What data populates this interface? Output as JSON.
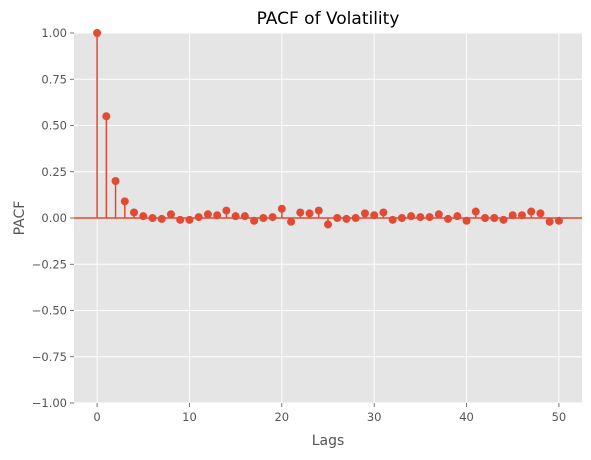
{
  "chart_data": {
    "type": "stem",
    "title": "PACF of Volatility",
    "xlabel": "Lags",
    "ylabel": "PACF",
    "xlim": [
      -2.5,
      52.5
    ],
    "ylim": [
      -1.0,
      1.0
    ],
    "x_ticks": [
      0,
      10,
      20,
      30,
      40,
      50
    ],
    "y_ticks": [
      -1.0,
      -0.75,
      -0.5,
      -0.25,
      0.0,
      0.25,
      0.5,
      0.75,
      1.0
    ],
    "x_tick_labels": [
      "0",
      "10",
      "20",
      "30",
      "40",
      "50"
    ],
    "y_tick_labels": [
      "−1.00",
      "−0.75",
      "−0.50",
      "−0.25",
      "0.00",
      "0.25",
      "0.50",
      "0.75",
      "1.00"
    ],
    "grid": true,
    "series": [
      {
        "x": [
          0,
          1,
          2,
          3,
          4,
          5,
          6,
          7,
          8,
          9,
          10,
          11,
          12,
          13,
          14,
          15,
          16,
          17,
          18,
          19,
          20,
          21,
          22,
          23,
          24,
          25,
          26,
          27,
          28,
          29,
          30,
          31,
          32,
          33,
          34,
          35,
          36,
          37,
          38,
          39,
          40,
          41,
          42,
          43,
          44,
          45,
          46,
          47,
          48,
          49,
          50
        ],
        "values": [
          1.0,
          0.55,
          0.2,
          0.09,
          0.03,
          0.01,
          0.0,
          -0.005,
          0.02,
          -0.01,
          -0.01,
          0.005,
          0.02,
          0.015,
          0.04,
          0.01,
          0.01,
          -0.015,
          0.0,
          0.005,
          0.05,
          -0.02,
          0.03,
          0.025,
          0.04,
          -0.035,
          0.0,
          -0.005,
          0.0,
          0.025,
          0.015,
          0.03,
          -0.01,
          0.0,
          0.01,
          0.005,
          0.005,
          0.02,
          -0.005,
          0.01,
          -0.015,
          0.035,
          0.0,
          0.0,
          -0.01,
          0.015,
          0.015,
          0.035,
          0.025,
          -0.02,
          -0.015
        ]
      }
    ],
    "colors": {
      "stem": "#e24a33",
      "background": "#e5e5e5",
      "grid": "#ffffff",
      "text": "#555555"
    }
  }
}
